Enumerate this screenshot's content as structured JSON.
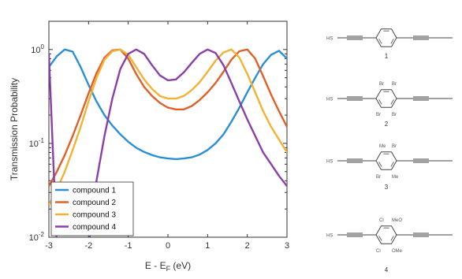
{
  "chart_data": {
    "type": "line",
    "xlabel_main": "E - E",
    "xlabel_sub": "F",
    "xlabel_unit": " (eV)",
    "ylabel": "Transmission Probability",
    "xlim": [
      -3,
      3
    ],
    "ylim": [
      0.01,
      2
    ],
    "yscale": "log",
    "xticks": [
      "-3",
      "-2",
      "-1",
      "0",
      "1",
      "2",
      "3"
    ],
    "yticks": [
      {
        "base": "10",
        "exp": "-2"
      },
      {
        "base": "10",
        "exp": "-1"
      },
      {
        "base": "10",
        "exp": "0"
      }
    ],
    "legend_position": "lower-left",
    "x": [
      -3.0,
      -2.8,
      -2.6,
      -2.4,
      -2.2,
      -2.0,
      -1.8,
      -1.6,
      -1.4,
      -1.2,
      -1.0,
      -0.8,
      -0.6,
      -0.4,
      -0.2,
      0.0,
      0.2,
      0.4,
      0.6,
      0.8,
      1.0,
      1.2,
      1.4,
      1.6,
      1.8,
      2.0,
      2.2,
      2.4,
      2.6,
      2.8,
      3.0
    ],
    "series": [
      {
        "name": "compound 1",
        "color": "#2b8fd6",
        "values": [
          0.65,
          0.85,
          1.0,
          0.95,
          0.65,
          0.42,
          0.28,
          0.2,
          0.155,
          0.125,
          0.104,
          0.09,
          0.081,
          0.075,
          0.071,
          0.069,
          0.068,
          0.069,
          0.071,
          0.076,
          0.085,
          0.1,
          0.125,
          0.17,
          0.24,
          0.35,
          0.5,
          0.7,
          0.88,
          0.97,
          0.8
        ]
      },
      {
        "name": "compound 2",
        "color": "#e0602a",
        "values": [
          0.035,
          0.05,
          0.075,
          0.12,
          0.2,
          0.34,
          0.56,
          0.82,
          0.98,
          1.0,
          0.8,
          0.55,
          0.4,
          0.32,
          0.27,
          0.24,
          0.23,
          0.23,
          0.25,
          0.29,
          0.35,
          0.44,
          0.58,
          0.78,
          0.96,
          1.0,
          0.8,
          0.52,
          0.33,
          0.22,
          0.15
        ]
      },
      {
        "name": "compound 3",
        "color": "#f2b233",
        "values": [
          0.022,
          0.032,
          0.05,
          0.085,
          0.15,
          0.28,
          0.5,
          0.78,
          0.96,
          1.0,
          0.88,
          0.65,
          0.48,
          0.38,
          0.32,
          0.3,
          0.3,
          0.32,
          0.37,
          0.45,
          0.58,
          0.76,
          0.93,
          1.0,
          0.82,
          0.55,
          0.35,
          0.22,
          0.15,
          0.11,
          0.08
        ]
      },
      {
        "name": "compound 4",
        "color": "#8b3fa8",
        "values": [
          0.9,
          0.008,
          0.008,
          0.008,
          0.008,
          0.008,
          0.04,
          0.12,
          0.3,
          0.62,
          0.9,
          1.0,
          0.9,
          0.68,
          0.53,
          0.47,
          0.48,
          0.57,
          0.72,
          0.9,
          1.0,
          0.92,
          0.68,
          0.44,
          0.28,
          0.18,
          0.12,
          0.08,
          0.06,
          0.045,
          0.035
        ]
      }
    ]
  },
  "molecules": {
    "labels": [
      "1",
      "2",
      "3",
      "4"
    ],
    "end_group": "HS",
    "atoms": {
      "m2": [
        "Br",
        "Br",
        "Br",
        "Br"
      ],
      "m3": [
        "Me",
        "Br",
        "Br",
        "Me"
      ],
      "m4": [
        "Cl",
        "MeO",
        "Cl",
        "OMe"
      ]
    }
  }
}
